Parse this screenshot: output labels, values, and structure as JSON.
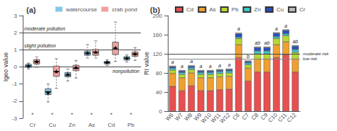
{
  "chart_data": [
    {
      "type": "box",
      "title": "(a)",
      "categories": [
        "Cr",
        "Cu",
        "Zn",
        "As",
        "Cd",
        "Pb"
      ],
      "ylabel": "Igeo value",
      "ylim": [
        -3,
        3
      ],
      "yticks": [
        -3,
        -2,
        -1,
        0,
        1,
        2,
        3
      ],
      "grid": false,
      "legend": "upper right",
      "marker": "star",
      "series": [
        {
          "name": "watercourse",
          "color": "#85c8e8",
          "boxes": [
            {
              "med": 0.05,
              "q1": -0.03,
              "q3": 0.15,
              "whislo": -0.12,
              "whishi": 0.22,
              "mean": 0.05
            },
            {
              "med": -1.45,
              "q1": -1.62,
              "q3": -1.28,
              "whislo": -2.05,
              "whishi": -1.0,
              "mean": -1.52
            },
            {
              "med": -0.48,
              "q1": -0.58,
              "q3": -0.33,
              "whislo": -0.82,
              "whishi": -0.12,
              "mean": -0.45
            },
            {
              "med": 0.8,
              "q1": 0.68,
              "q3": 0.92,
              "whislo": 0.52,
              "whishi": 1.3,
              "mean": 0.8
            },
            {
              "med": 0.25,
              "q1": 0.18,
              "q3": 0.32,
              "whislo": 0.08,
              "whishi": 0.42,
              "mean": 0.26
            },
            {
              "med": 0.5,
              "q1": 0.4,
              "q3": 0.6,
              "whislo": 0.28,
              "whishi": 0.7,
              "mean": 0.5
            }
          ]
        },
        {
          "name": "crab pond",
          "color": "#f0a0a0",
          "boxes": [
            {
              "med": 0.3,
              "q1": 0.17,
              "q3": 0.43,
              "whislo": -0.02,
              "whishi": 0.58,
              "mean": 0.3
            },
            {
              "med": -0.28,
              "q1": -0.55,
              "q3": 0.05,
              "whislo": -1.25,
              "whishi": 0.48,
              "mean": -0.28
            },
            {
              "med": -0.08,
              "q1": -0.22,
              "q3": 0.1,
              "whislo": -0.65,
              "whishi": 0.38,
              "mean": -0.05
            },
            {
              "med": 0.85,
              "q1": 0.68,
              "q3": 1.02,
              "whislo": 0.52,
              "whishi": 1.52,
              "mean": 0.85
            },
            {
              "med": 1.05,
              "q1": 0.72,
              "q3": 1.45,
              "whislo": 0.32,
              "whishi": 2.62,
              "mean": 1.1
            },
            {
              "med": 0.75,
              "q1": 0.62,
              "q3": 0.88,
              "whislo": 0.38,
              "whishi": 1.12,
              "mean": 0.75
            }
          ]
        }
      ],
      "hlines": [
        {
          "value": 2.0,
          "label": "moderate pollution"
        },
        {
          "value": 1.0,
          "label": "slight pollution"
        },
        {
          "value": 0.0,
          "label": "nonpollution"
        }
      ],
      "annotations": [
        "*",
        "*",
        "*",
        "*",
        "*",
        "*"
      ]
    },
    {
      "type": "bar",
      "stacked": true,
      "title": "(b)",
      "categories": [
        "W6",
        "W7",
        "W8",
        "W9",
        "W10",
        "W11",
        "W12",
        "C6",
        "C7",
        "C8",
        "C9",
        "C10",
        "C11",
        "C12"
      ],
      "ylabel": "RI value",
      "ylim": [
        0,
        200
      ],
      "yticks": [
        0,
        40,
        80,
        120,
        160,
        200
      ],
      "grid": false,
      "legend": "upper center",
      "series": [
        {
          "name": "Cd",
          "color": "#e85050",
          "values": [
            52,
            43,
            53,
            43,
            43,
            45,
            46,
            112,
            63,
            82,
            82,
            112,
            118,
            82
          ]
        },
        {
          "name": "As",
          "color": "#f0a030",
          "values": [
            27,
            27,
            27,
            27,
            27,
            27,
            27,
            27,
            27,
            27,
            27,
            27,
            27,
            27
          ]
        },
        {
          "name": "Pb",
          "color": "#b8d830",
          "values": [
            7,
            7,
            7,
            7,
            7,
            7,
            7,
            13,
            7,
            11,
            11,
            13,
            13,
            14
          ]
        },
        {
          "name": "Zn",
          "color": "#40c8c8",
          "values": [
            4,
            4,
            4,
            4,
            4,
            4,
            4,
            3,
            4,
            6,
            6,
            4,
            4,
            6
          ]
        },
        {
          "name": "Cu",
          "color": "#2850c0",
          "values": [
            3,
            3,
            3,
            3,
            3,
            3,
            3,
            7,
            3,
            7,
            7,
            7,
            7,
            7
          ]
        },
        {
          "name": "Cr",
          "color": "#b8b8b8",
          "values": [
            2,
            2,
            2,
            2,
            2,
            2,
            2,
            2,
            2,
            2,
            2,
            2,
            2,
            2
          ]
        }
      ],
      "hlines": [
        {
          "value": 120,
          "label": "moderate risk"
        },
        {
          "value": 110,
          "label": "low risk"
        }
      ],
      "annotations": [
        "a",
        "a",
        "a",
        "a",
        "a",
        "a",
        "a",
        "a",
        "b",
        "ab",
        "ab",
        "a",
        "a",
        "ab"
      ]
    }
  ]
}
